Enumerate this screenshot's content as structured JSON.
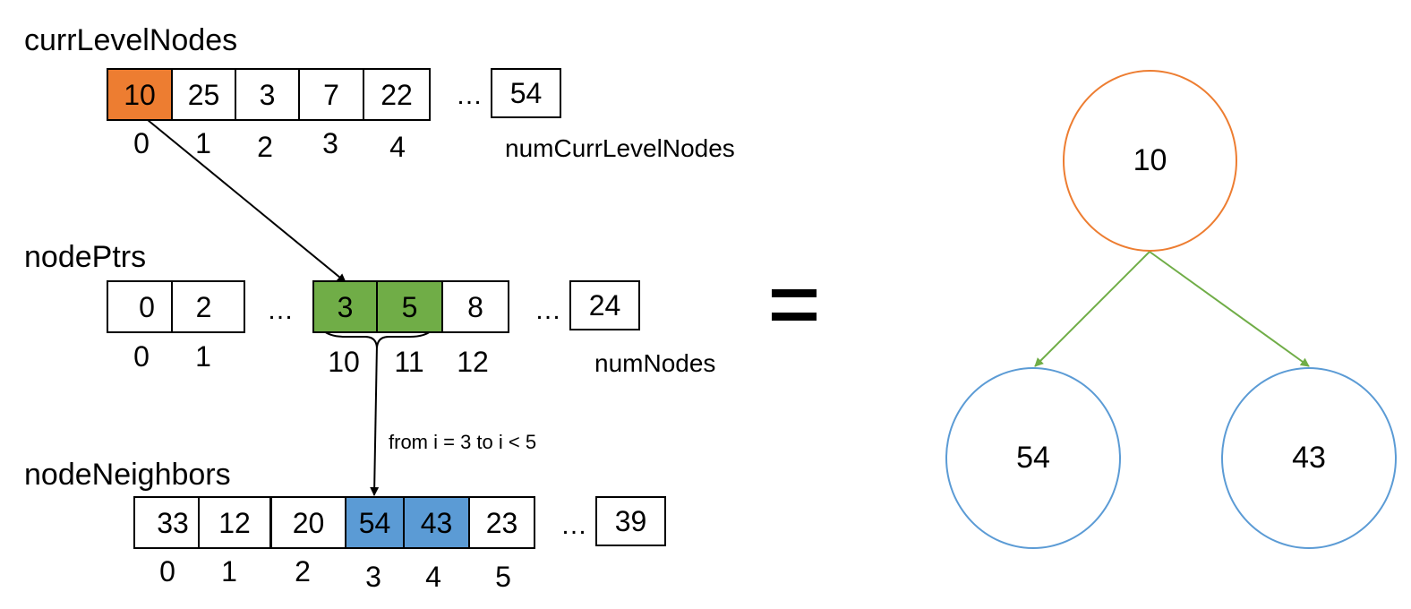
{
  "labels": {
    "curr_level_nodes": "currLevelNodes",
    "node_ptrs": "nodePtrs",
    "node_neighbors": "nodeNeighbors",
    "num_curr_level_nodes": "numCurrLevelNodes",
    "num_nodes": "numNodes",
    "range_text": "from i = 3 to i < 5",
    "ellipsis": "…"
  },
  "curr_level_nodes": {
    "values": [
      "10",
      "25",
      "3",
      "7",
      "22",
      "54"
    ],
    "indices": [
      "0",
      "1",
      "2",
      "3",
      "4"
    ]
  },
  "node_ptrs": {
    "values": [
      "0",
      "2",
      "3",
      "5",
      "8",
      "24"
    ],
    "indices": [
      "0",
      "1",
      "10",
      "11",
      "12"
    ]
  },
  "node_neighbors": {
    "values": [
      "33",
      "12",
      "20",
      "54",
      "43",
      "23",
      "39"
    ],
    "indices": [
      "0",
      "1",
      "2",
      "3",
      "4",
      "5"
    ]
  },
  "tree": {
    "root": "10",
    "children": [
      "54",
      "43"
    ]
  },
  "colors": {
    "orange": "#ed7d31",
    "green": "#70ad47",
    "blue": "#5b9bd5"
  }
}
